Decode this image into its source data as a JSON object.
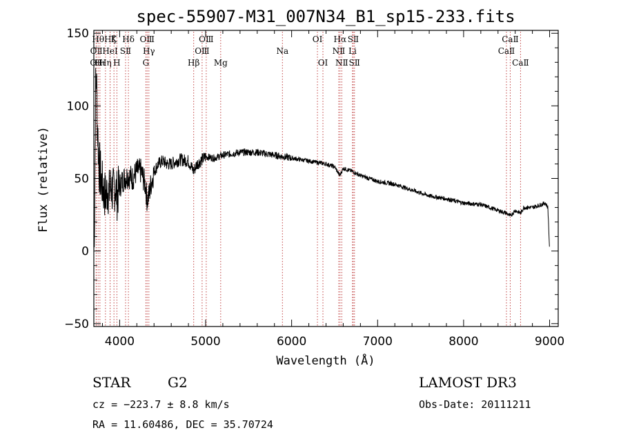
{
  "chart_data": {
    "type": "line",
    "title": "spec-55907-M31_007N34_B1_sp15-233.fits",
    "xlabel": "Wavelength (Å)",
    "ylabel": "Flux (relative)",
    "xlim": [
      3700,
      9100
    ],
    "ylim": [
      -52,
      152
    ],
    "xticks": [
      4000,
      5000,
      6000,
      7000,
      8000,
      9000
    ],
    "yticks": [
      -50,
      0,
      50,
      100,
      150
    ],
    "series": [
      {
        "name": "spectrum",
        "x": [
          3700,
          3710,
          3720,
          3730,
          3740,
          3760,
          3780,
          3800,
          3820,
          3840,
          3860,
          3880,
          3900,
          3920,
          3950,
          3970,
          4000,
          4050,
          4100,
          4150,
          4200,
          4250,
          4300,
          4320,
          4340,
          4360,
          4400,
          4450,
          4500,
          4550,
          4600,
          4700,
          4800,
          4860,
          4900,
          5000,
          5100,
          5200,
          5300,
          5400,
          5500,
          5600,
          5700,
          5800,
          5900,
          6000,
          6100,
          6200,
          6300,
          6400,
          6500,
          6560,
          6600,
          6700,
          6800,
          6900,
          7000,
          7200,
          7400,
          7600,
          7800,
          8000,
          8200,
          8400,
          8500,
          8542,
          8600,
          8662,
          8700,
          8800,
          8900,
          8950,
          8980,
          9000
        ],
        "values": [
          0,
          30,
          110,
          120,
          90,
          60,
          50,
          45,
          40,
          38,
          42,
          40,
          45,
          40,
          45,
          38,
          45,
          50,
          52,
          50,
          55,
          55,
          45,
          35,
          38,
          45,
          55,
          60,
          62,
          60,
          60,
          63,
          62,
          55,
          60,
          65,
          64,
          66,
          67,
          68,
          68,
          68,
          67,
          66,
          65,
          64,
          63,
          62,
          61,
          60,
          58,
          52,
          57,
          55,
          52,
          50,
          48,
          46,
          42,
          38,
          36,
          33,
          32,
          28,
          26,
          24,
          28,
          26,
          30,
          30,
          32,
          33,
          30,
          0
        ]
      }
    ],
    "line_markers": [
      {
        "label": "OⅡ",
        "x": 3727,
        "row": 3
      },
      {
        "label": "OⅡ",
        "x": 3729,
        "row": 2
      },
      {
        "label": "Hθ",
        "x": 3750,
        "row": 1
      },
      {
        "label": "Hη",
        "x": 3835,
        "row": 3
      },
      {
        "label": "Hι",
        "x": 3771,
        "row": 3
      },
      {
        "label": "Hζ",
        "x": 3889,
        "row": 1
      },
      {
        "label": "HeI",
        "x": 3889,
        "row": 2
      },
      {
        "label": "K",
        "x": 3934,
        "row": 1
      },
      {
        "label": "H",
        "x": 3968,
        "row": 3
      },
      {
        "label": "SⅡ",
        "x": 4069,
        "row": 2
      },
      {
        "label": "Hδ",
        "x": 4102,
        "row": 1
      },
      {
        "label": "OⅢ",
        "x": 4320,
        "row": 1
      },
      {
        "label": "G",
        "x": 4305,
        "row": 3
      },
      {
        "label": "Hγ",
        "x": 4340,
        "row": 2
      },
      {
        "label": "Hβ",
        "x": 4861,
        "row": 3
      },
      {
        "label": "OⅢ",
        "x": 4959,
        "row": 2
      },
      {
        "label": "OⅢ",
        "x": 5007,
        "row": 1
      },
      {
        "label": "Mg",
        "x": 5175,
        "row": 3
      },
      {
        "label": "Na",
        "x": 5893,
        "row": 2
      },
      {
        "label": "OⅠ",
        "x": 6300,
        "row": 1
      },
      {
        "label": "OⅠ",
        "x": 6364,
        "row": 3
      },
      {
        "label": "Hα",
        "x": 6563,
        "row": 1
      },
      {
        "label": "NⅡ",
        "x": 6548,
        "row": 2
      },
      {
        "label": "NⅡ",
        "x": 6583,
        "row": 3
      },
      {
        "label": "SⅡ",
        "x": 6716,
        "row": 1
      },
      {
        "label": "Li",
        "x": 6708,
        "row": 2
      },
      {
        "label": "SⅡ",
        "x": 6731,
        "row": 3
      },
      {
        "label": "CaⅡ",
        "x": 8542,
        "row": 1
      },
      {
        "label": "CaⅡ",
        "x": 8498,
        "row": 2
      },
      {
        "label": "CaⅡ",
        "x": 8662,
        "row": 3
      }
    ]
  },
  "info": {
    "class": "STAR",
    "subclass": "G2",
    "survey": "LAMOST DR3",
    "cz": "cz = −223.7 ± 8.8 km/s",
    "obs_date": "Obs-Date: 20111211",
    "coords": "RA =  11.60486, DEC =  35.70724"
  },
  "colors": {
    "spectrum": "#000000",
    "marker_line": "#c04040",
    "axis": "#000000"
  }
}
